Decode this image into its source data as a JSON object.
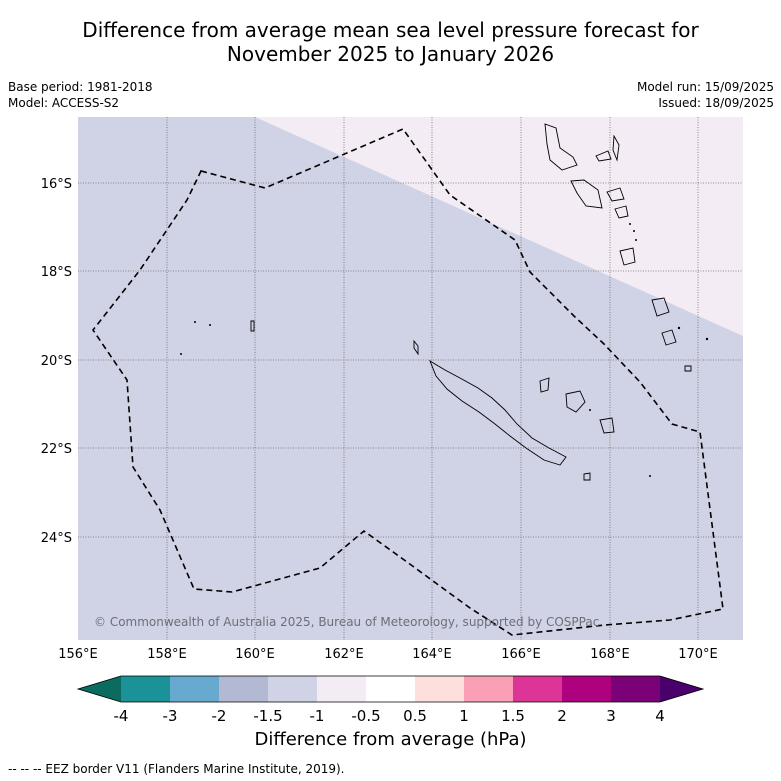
{
  "title": {
    "line1": "Difference from average mean sea level pressure forecast for",
    "line2": "November 2025 to January 2026"
  },
  "meta": {
    "base_period": "Base period: 1981-2018",
    "model": "Model: ACCESS-S2",
    "model_run": "Model run: 15/09/2025",
    "issued": "Issued: 18/09/2025"
  },
  "map": {
    "lat_labels": [
      "16°S",
      "18°S",
      "20°S",
      "22°S",
      "24°S"
    ],
    "lon_labels": [
      "156°E",
      "158°E",
      "160°E",
      "162°E",
      "164°E",
      "166°E",
      "168°E",
      "170°E"
    ],
    "copyright": "© Commonwealth of Australia 2025, Bureau of Meteorology, supported by COSPPac",
    "colors": {
      "base_fill": "#d0d2e5",
      "upper_right_fill": "#f4ecf4",
      "grid": "#6d6d6d",
      "eez": "#000000"
    }
  },
  "colorbar": {
    "tick_labels": [
      "-4",
      "-3",
      "-2",
      "-1.5",
      "-1",
      "-0.5",
      "0.5",
      "1",
      "1.5",
      "2",
      "3",
      "4"
    ],
    "colors": [
      "#0b6b5e",
      "#1a9298",
      "#67a9cf",
      "#b3b9d2",
      "#d0d2e5",
      "#f4ecf4",
      "#ffffff",
      "#fde0dd",
      "#fa9fb5",
      "#dd3497",
      "#ae017e",
      "#7a0177",
      "#49006a"
    ],
    "title": "Difference from average (hPa)"
  },
  "footnote": "--  --  -- EEZ border V11 (Flanders Marine Institute, 2019)."
}
